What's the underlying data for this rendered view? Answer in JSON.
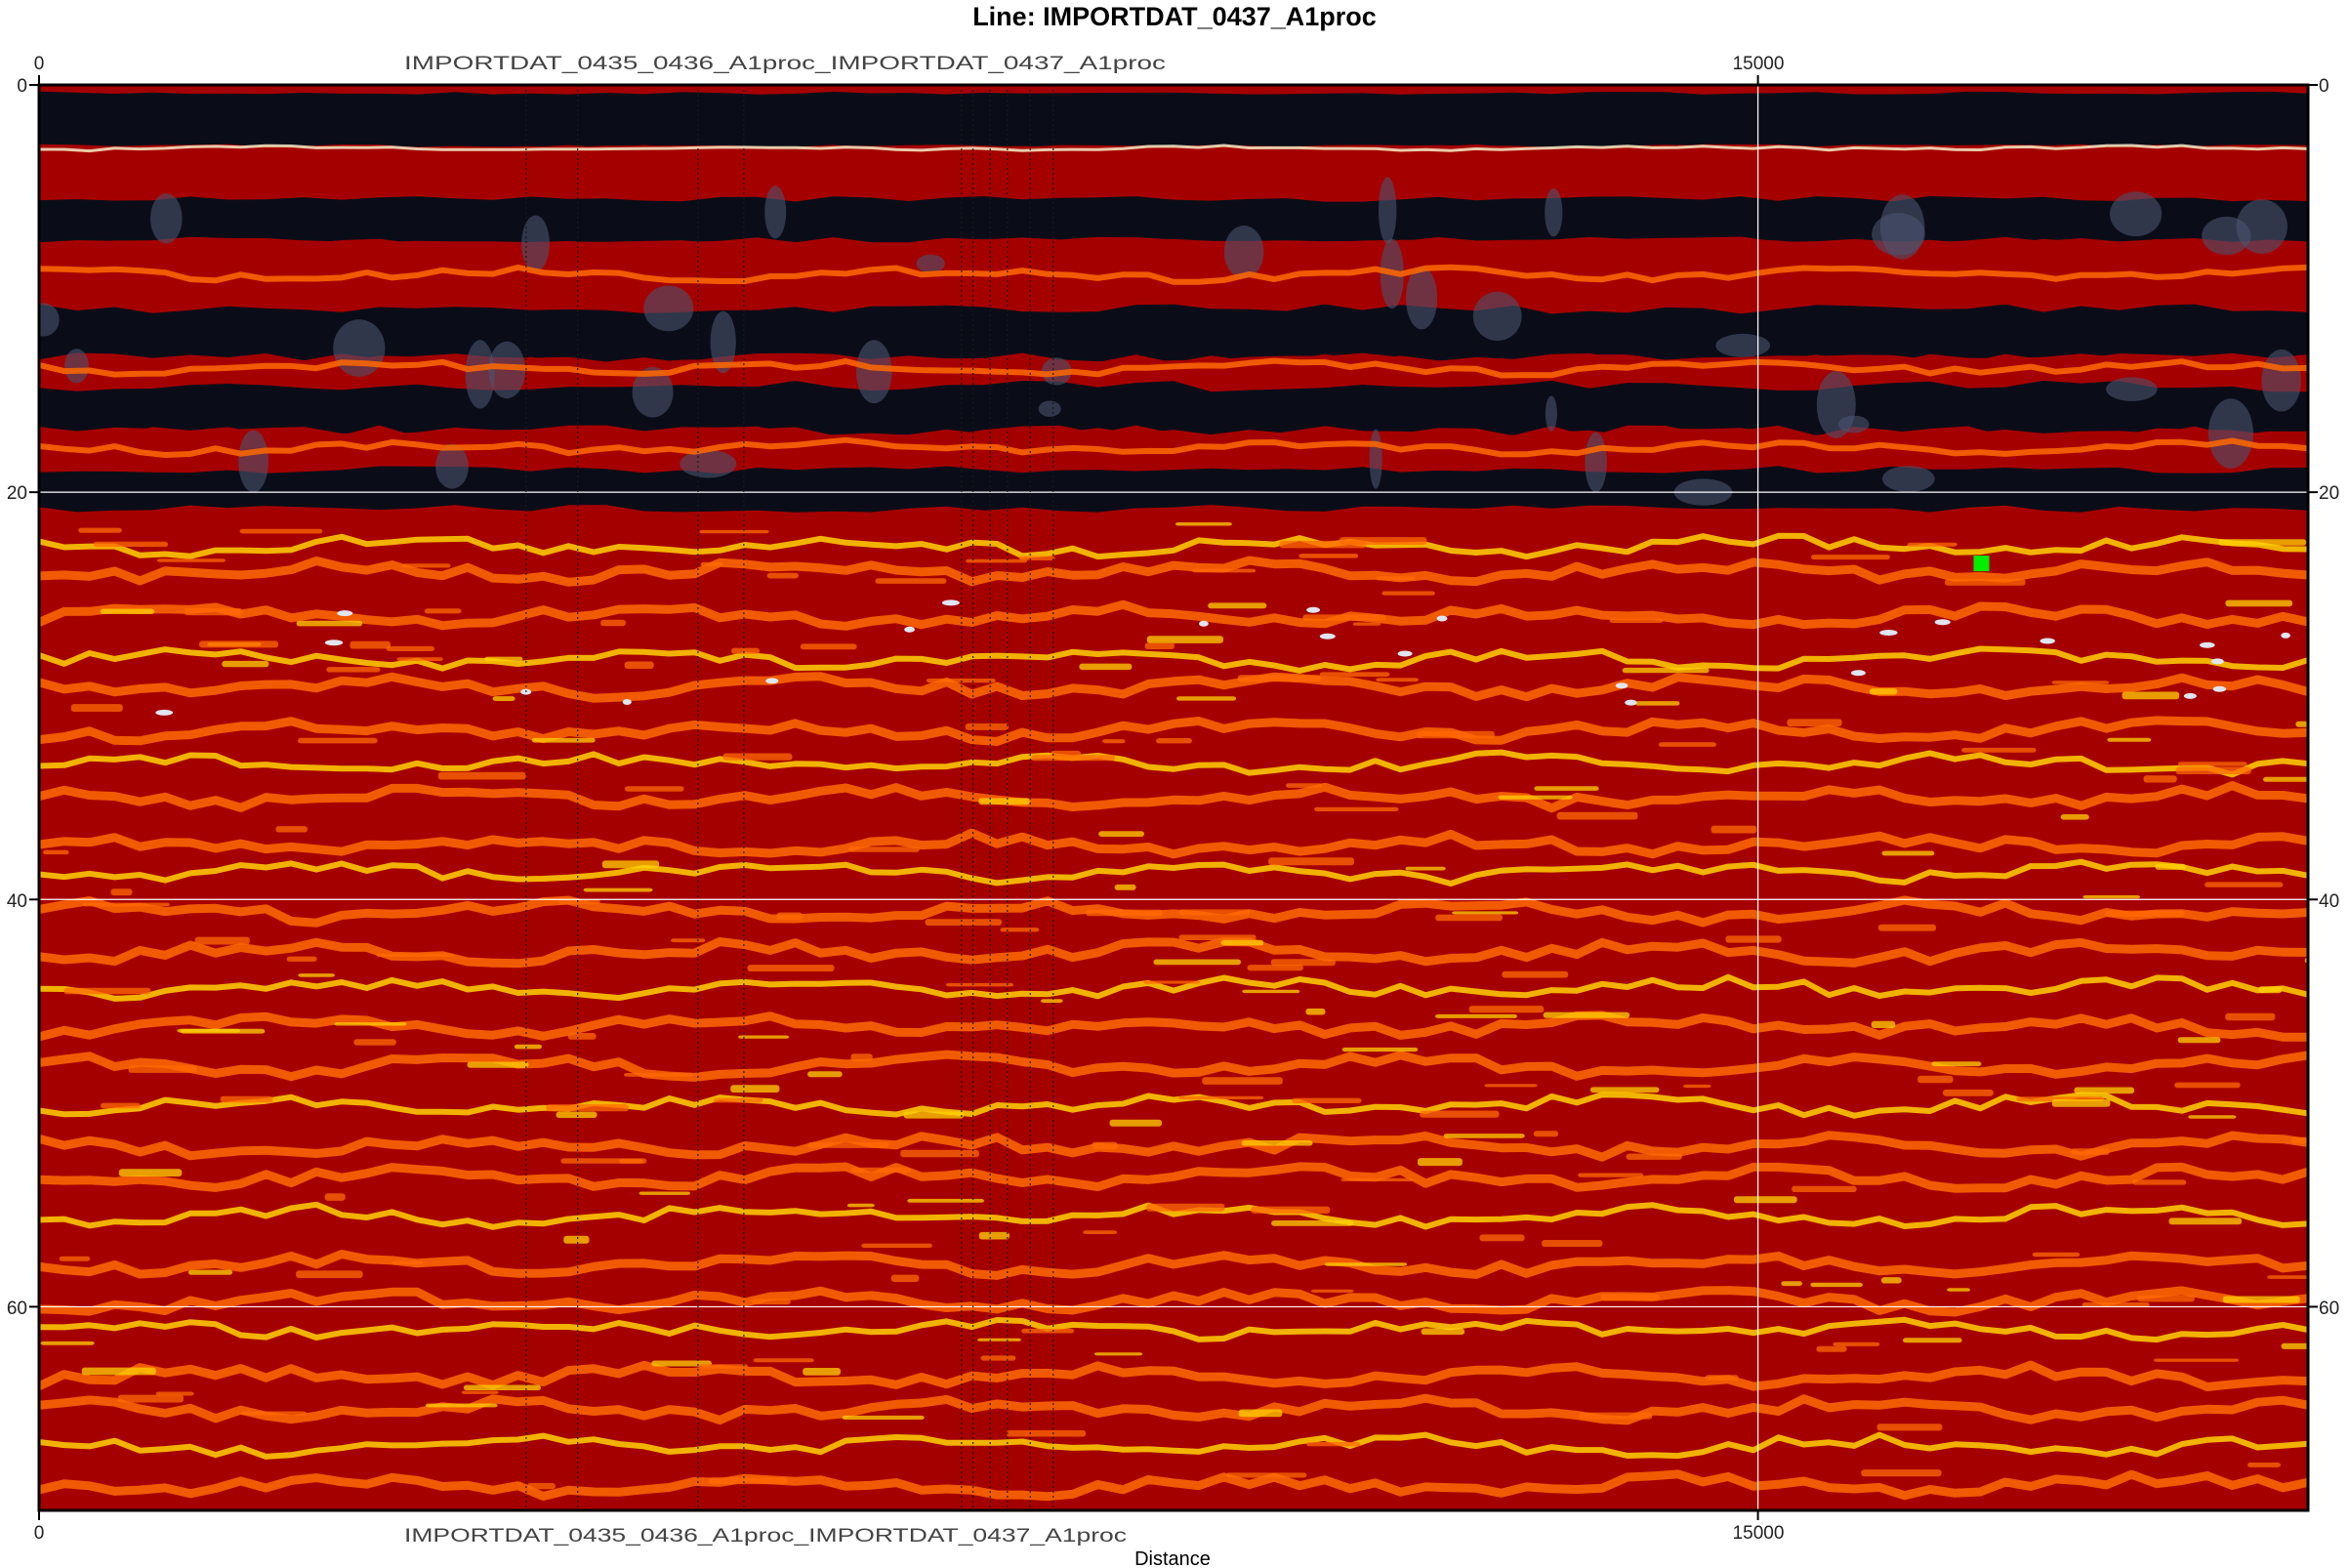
{
  "title": "Line: IMPORTDAT_0437_A1proc",
  "x_axis": {
    "label": "Distance",
    "ticks": [
      "0",
      "15000"
    ],
    "top_ticks": [
      "0",
      "15000"
    ]
  },
  "y_axis": {
    "ticks_left": [
      "0",
      "20",
      "40",
      "60"
    ],
    "ticks_right": [
      "0",
      "20",
      "40",
      "60"
    ]
  },
  "line_markers": {
    "top_text": "IMPORTDAT_0435_0436_A1proc_IMPORTDAT_0437_A1proc",
    "bottom_text": "IMPORTDAT_0435_0436_A1proc_IMPORTDAT_0437_A1proc"
  },
  "colors": {
    "background_red": "#a50000",
    "bright_orange": "#ff6a00",
    "yellow": "#ffd200",
    "dark_band": "#0a0d18",
    "grey_band": "#4a536e",
    "grid": "#ffffff",
    "pick_marker": "#00ee00"
  },
  "chart_data": {
    "type": "heatmap",
    "title": "Line: IMPORTDAT_0437_A1proc",
    "xlabel": "Distance",
    "ylabel": "",
    "x_ticks": [
      0,
      15000
    ],
    "y_ticks": [
      0,
      20,
      40,
      60
    ],
    "xlim": [
      0,
      19800
    ],
    "ylim": [
      70,
      0
    ],
    "grid": true,
    "pick_point": {
      "x": 16950,
      "y": 23.5
    },
    "marker_lines_x": [
      4250,
      4700,
      5750,
      6150,
      8050,
      8150,
      8300,
      8450,
      8650,
      8850
    ]
  }
}
